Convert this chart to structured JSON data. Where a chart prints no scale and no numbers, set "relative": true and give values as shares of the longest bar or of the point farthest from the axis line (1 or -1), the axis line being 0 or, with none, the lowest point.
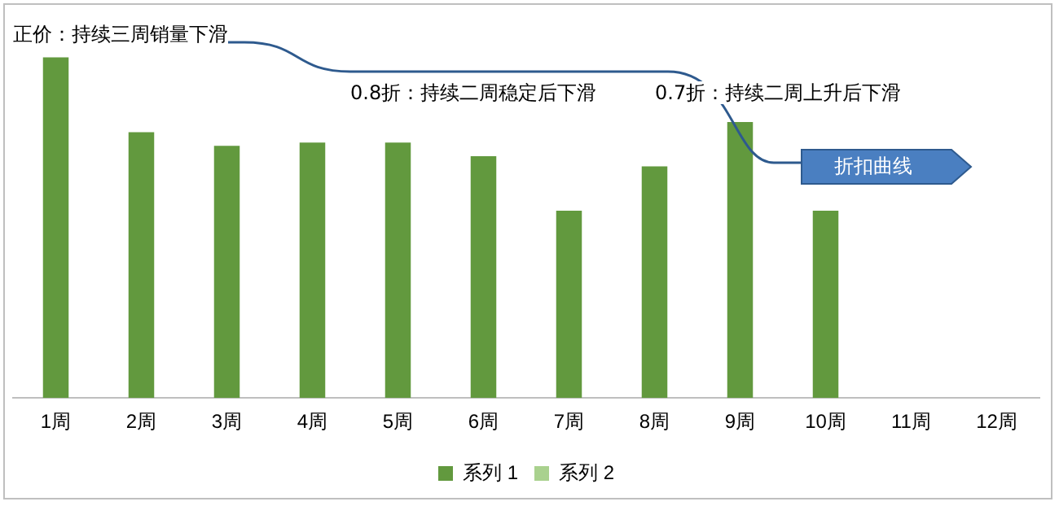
{
  "chart_data": {
    "type": "bar",
    "relative": true,
    "categories": [
      "1周",
      "2周",
      "3周",
      "4周",
      "5周",
      "6周",
      "7周",
      "8周",
      "9周",
      "10周",
      "11周",
      "12周"
    ],
    "series": [
      {
        "name": "系列 1",
        "color": "#62993e",
        "values": [
          1,
          0.78,
          0.74,
          0.75,
          0.75,
          0.71,
          0.55,
          0.68,
          0.81,
          0.55,
          null,
          null
        ]
      },
      {
        "name": "系列 2",
        "color": "#a9d18e",
        "values": [
          null,
          null,
          null,
          null,
          null,
          null,
          null,
          null,
          null,
          null,
          null,
          null
        ]
      }
    ],
    "legend": "bottom",
    "grid": false,
    "annotations": [
      "正价：持续三周销量下滑",
      "0.8折：持续二周稳定后下滑",
      "0.7折：持续二周上升后下滑",
      "折扣曲线"
    ]
  }
}
